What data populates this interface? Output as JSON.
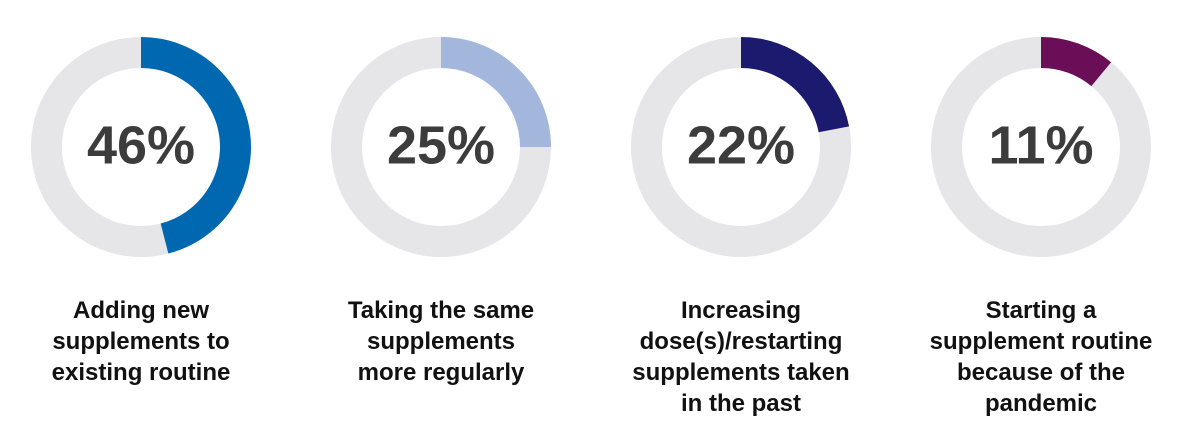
{
  "chart_data": {
    "type": "donut",
    "max_value": 100,
    "track_color": "#e6e6e8",
    "items": [
      {
        "value": 46,
        "label": "46%",
        "color": "#0068b0",
        "caption": [
          "Adding new",
          "supplements to",
          "existing routine"
        ]
      },
      {
        "value": 25,
        "label": "25%",
        "color": "#a3b6dc",
        "caption": [
          "Taking the same",
          "supplements",
          "more regularly"
        ]
      },
      {
        "value": 22,
        "label": "22%",
        "color": "#1c1a6e",
        "caption": [
          "Increasing",
          "dose(s)/restarting",
          "supplements taken",
          "in the past"
        ]
      },
      {
        "value": 11,
        "label": "11%",
        "color": "#6b0e58",
        "caption": [
          "Starting a",
          "supplement routine",
          "because of the",
          "pandemic"
        ]
      }
    ]
  }
}
